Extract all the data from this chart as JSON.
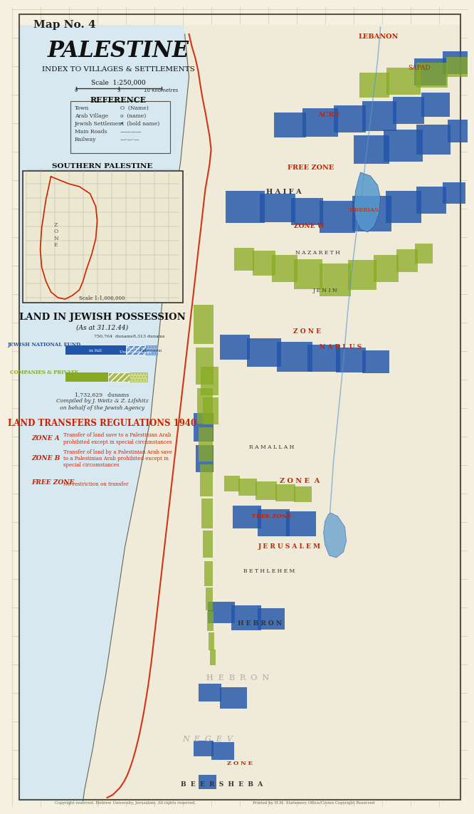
{
  "title": "PALESTINE",
  "subtitle": "INDEX TO VILLAGES & SETTLEMENTS",
  "map_no": "Map No. 4",
  "scale_text": "Scale  1:250,000",
  "reference_title": "REFERENCE",
  "ref_items": [
    [
      "Town",
      "O  (Name)"
    ],
    [
      "Arab Village",
      "o  (name)"
    ],
    [
      "Jewish Settlement",
      "•  (bold name)"
    ],
    [
      "Main Roads",
      "————"
    ],
    [
      "Railway",
      "—·—·—"
    ]
  ],
  "inset_title": "SOUTHERN PALESTINE",
  "possession_title": "LAND IN JEWISH POSSESSION",
  "possession_subtitle": "(As at 31.12.44)",
  "jnf_label": "JEWISH NATIONAL FUND",
  "companies_label": "COMPANIES & PRIVATE",
  "jnf_bar1_label": "in full",
  "jnf_bar2_label": "Shares in\nUndivided Land",
  "jnf_bar3_label": "Concession",
  "jnf_value1": "750,764  dunams",
  "jnf_value2": "8,313 dunams",
  "companies_total": "1,732,629   dunams",
  "compiled_text": "Compiled by J. Weitz & Z. Lifshitz\non behalf of the Jewish Agency",
  "land_transfers_title": "LAND TRANSFERS REGULATIONS 1940",
  "zone_a_label": "ZONE A",
  "zone_a_text": "Transfer of land save to a Palestinian Arab\nprohibited except in special circumstances",
  "zone_b_label": "ZONE B",
  "zone_b_text": "Transfer of land by a Palestinian Arab save\nto a Palestinian Arab prohibited except in\nspecial circumstances",
  "free_zone_label": "FREE ZONE",
  "free_zone_text": "No restriction on transfer",
  "bg_color": "#f5f0e0",
  "grid_color": "#ccccaa",
  "red_color": "#cc2200",
  "blue_color": "#2255aa",
  "green_color": "#88aa22",
  "jnf_solid_blue": "#2255aa",
  "jnf_hatch_blue": "#5588cc",
  "companies_solid_green": "#88aa22",
  "companies_hatch_green": "#aabb55",
  "copyright_text": "Copyright reserved. Hebrew University, Jerusalem. All rights reserved.",
  "bottom_note": "Printed by H.M. Stationery Office/Crown Copyright Reserved"
}
